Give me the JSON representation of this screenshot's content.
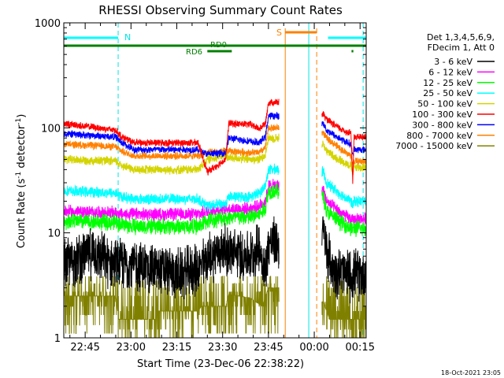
{
  "chart_data": {
    "type": "line",
    "title": "RHESSI Observing Summary Count Rates",
    "xlabel": "Start Time (23-Dec-06 22:38:22)",
    "ylabel_prefix": "Count Rate (s",
    "ylabel_sup": "-1",
    "ylabel_mid": " detector",
    "ylabel_sup2": "-1",
    "ylabel_suffix": ")",
    "y_scale": "log",
    "ylim": [
      1,
      1000
    ],
    "xlim_minutes": [
      0,
      99
    ],
    "x_ticks": [
      {
        "t": 7,
        "label": "22:45"
      },
      {
        "t": 22,
        "label": "23:00"
      },
      {
        "t": 37,
        "label": "23:15"
      },
      {
        "t": 52,
        "label": "23:30"
      },
      {
        "t": 67,
        "label": "23:45"
      },
      {
        "t": 82,
        "label": "00:00"
      },
      {
        "t": 97,
        "label": "00:15"
      }
    ],
    "y_ticks": [
      {
        "v": 1,
        "label": "1"
      },
      {
        "v": 10,
        "label": "10"
      },
      {
        "v": 100,
        "label": "100"
      },
      {
        "v": 1000,
        "label": "1000"
      }
    ],
    "legend_header": [
      "Det 1,3,4,5,6,9,",
      "FDecim 1, Att 0"
    ],
    "legend_position": "right",
    "series": [
      {
        "name": "3 - 6 keV",
        "color": "#000000",
        "band": 1
      },
      {
        "name": "6 - 12 keV",
        "color": "#ff00ff",
        "band": 2
      },
      {
        "name": "12 - 25 keV",
        "color": "#00ff00",
        "band": 3
      },
      {
        "name": "25 - 50 keV",
        "color": "#00ffff",
        "band": 4
      },
      {
        "name": "50 - 100 keV",
        "color": "#d4d400",
        "band": 5
      },
      {
        "name": "100 - 300 keV",
        "color": "#ff0000",
        "band": 6
      },
      {
        "name": "300 - 800 keV",
        "color": "#0000ff",
        "band": 7
      },
      {
        "name": "800 - 7000 keV",
        "color": "#ff8000",
        "band": 8
      },
      {
        "name": "7000 - 15000 keV",
        "color": "#808000",
        "band": 9
      }
    ],
    "keyframes": {
      "red": [
        [
          0,
          110
        ],
        [
          17,
          95
        ],
        [
          19,
          82
        ],
        [
          23,
          72
        ],
        [
          44,
          72
        ],
        [
          47,
          38
        ],
        [
          53,
          50
        ],
        [
          54,
          110
        ],
        [
          61,
          108
        ],
        [
          64,
          98
        ],
        [
          66,
          110
        ],
        [
          67,
          175
        ]
      ],
      "blue": [
        [
          0,
          88
        ],
        [
          17,
          82
        ],
        [
          19,
          72
        ],
        [
          23,
          62
        ],
        [
          44,
          62
        ],
        [
          47,
          56
        ],
        [
          53,
          58
        ],
        [
          54,
          80
        ],
        [
          61,
          74
        ],
        [
          64,
          72
        ],
        [
          66,
          82
        ],
        [
          67,
          130
        ]
      ],
      "orange": [
        [
          0,
          70
        ],
        [
          17,
          66
        ],
        [
          19,
          60
        ],
        [
          23,
          54
        ],
        [
          44,
          54
        ],
        [
          47,
          58
        ],
        [
          53,
          60
        ],
        [
          54,
          60
        ],
        [
          61,
          58
        ],
        [
          64,
          58
        ],
        [
          66,
          65
        ],
        [
          67,
          100
        ]
      ],
      "yellow": [
        [
          0,
          50
        ],
        [
          17,
          48
        ],
        [
          19,
          44
        ],
        [
          23,
          40
        ],
        [
          44,
          40
        ],
        [
          47,
          50
        ],
        [
          53,
          55
        ],
        [
          54,
          52
        ],
        [
          61,
          50
        ],
        [
          64,
          50
        ],
        [
          66,
          56
        ],
        [
          67,
          80
        ]
      ],
      "cyan": [
        [
          0,
          25
        ],
        [
          17,
          24
        ],
        [
          19,
          22
        ],
        [
          23,
          21
        ],
        [
          44,
          21
        ],
        [
          47,
          18
        ],
        [
          53,
          19
        ],
        [
          54,
          22
        ],
        [
          61,
          22
        ],
        [
          64,
          24
        ],
        [
          66,
          28
        ],
        [
          67,
          40
        ]
      ],
      "magenta": [
        [
          0,
          16
        ],
        [
          17,
          15.5
        ],
        [
          19,
          15
        ],
        [
          23,
          15
        ],
        [
          44,
          15
        ],
        [
          47,
          16
        ],
        [
          53,
          17
        ],
        [
          54,
          17
        ],
        [
          61,
          17
        ],
        [
          64,
          18
        ],
        [
          66,
          20
        ],
        [
          67,
          28
        ]
      ],
      "green": [
        [
          0,
          13
        ],
        [
          17,
          12.5
        ],
        [
          19,
          12
        ],
        [
          23,
          11.5
        ],
        [
          44,
          11.5
        ],
        [
          47,
          13
        ],
        [
          53,
          14
        ],
        [
          54,
          14
        ],
        [
          61,
          14
        ],
        [
          64,
          15
        ],
        [
          66,
          17
        ],
        [
          67,
          25
        ]
      ],
      "black": [
        [
          0,
          5
        ],
        [
          10,
          6.5
        ],
        [
          16,
          5
        ],
        [
          22,
          5
        ],
        [
          30,
          4.5
        ],
        [
          38,
          4
        ],
        [
          44,
          4.5
        ],
        [
          48,
          6
        ],
        [
          52,
          7
        ],
        [
          54,
          6.5
        ],
        [
          61,
          6
        ],
        [
          64,
          7.5
        ],
        [
          66,
          4
        ],
        [
          67,
          8
        ]
      ],
      "olive": [
        [
          0,
          2.5
        ],
        [
          17,
          2.5
        ],
        [
          18,
          1.5
        ],
        [
          30,
          1.5
        ],
        [
          31,
          1.8
        ],
        [
          44,
          1.8
        ],
        [
          45,
          2
        ],
        [
          53,
          2
        ],
        [
          54,
          2.6
        ],
        [
          61,
          2.4
        ],
        [
          65,
          2
        ],
        [
          67,
          3
        ]
      ]
    },
    "recovery": {
      "red": [
        [
          85,
          135
        ],
        [
          86,
          120
        ],
        [
          90,
          100
        ],
        [
          93,
          90
        ],
        [
          94,
          90
        ],
        [
          94.6,
          30
        ],
        [
          95,
          82
        ],
        [
          99,
          82
        ]
      ],
      "blue": [
        [
          85,
          110
        ],
        [
          86,
          95
        ],
        [
          90,
          80
        ],
        [
          93,
          72
        ],
        [
          94,
          70
        ],
        [
          94.6,
          55
        ],
        [
          95,
          62
        ],
        [
          99,
          62
        ]
      ],
      "orange": [
        [
          85,
          90
        ],
        [
          86,
          80
        ],
        [
          90,
          65
        ],
        [
          93,
          56
        ],
        [
          94,
          55
        ],
        [
          94.6,
          44
        ],
        [
          95,
          48
        ],
        [
          99,
          48
        ]
      ],
      "yellow": [
        [
          85,
          70
        ],
        [
          86,
          60
        ],
        [
          90,
          50
        ],
        [
          93,
          45
        ],
        [
          94,
          44
        ],
        [
          94.6,
          36
        ],
        [
          95,
          42
        ],
        [
          99,
          42
        ]
      ],
      "cyan": [
        [
          85,
          38
        ],
        [
          86,
          30
        ],
        [
          90,
          24
        ],
        [
          93,
          21
        ],
        [
          94,
          20
        ],
        [
          94.6,
          18
        ],
        [
          95,
          20
        ],
        [
          99,
          20
        ]
      ],
      "magenta": [
        [
          85,
          26
        ],
        [
          86,
          20
        ],
        [
          90,
          16
        ],
        [
          93,
          14
        ],
        [
          94,
          13.5
        ],
        [
          94.6,
          13
        ],
        [
          95,
          13.5
        ],
        [
          99,
          13.5
        ]
      ],
      "green": [
        [
          85,
          22
        ],
        [
          86,
          16
        ],
        [
          90,
          13
        ],
        [
          93,
          11.5
        ],
        [
          94,
          11
        ],
        [
          94.6,
          11
        ],
        [
          95,
          11
        ],
        [
          99,
          11
        ]
      ],
      "black": [
        [
          85,
          10
        ],
        [
          86,
          7
        ],
        [
          88,
          4.5
        ],
        [
          93,
          4
        ],
        [
          99,
          4
        ]
      ],
      "olive": [
        [
          85,
          2.2
        ],
        [
          87,
          1.5
        ],
        [
          99,
          1.5
        ]
      ]
    },
    "gap_minutes": [
      70.5,
      84.5
    ],
    "cyan_dashed_minutes": [
      17.8,
      98
    ],
    "cyan_solid_minutes": [
      0,
      80.2
    ],
    "orange_solid_minutes": [
      72.5
    ],
    "orange_dashed_minutes": [
      82.8
    ],
    "flags": {
      "N_label": "N",
      "S_label": "S",
      "RD0_label": "RD0",
      "RD6_label": "RD6"
    },
    "timestamp": "18-Oct-2021 23:05"
  }
}
